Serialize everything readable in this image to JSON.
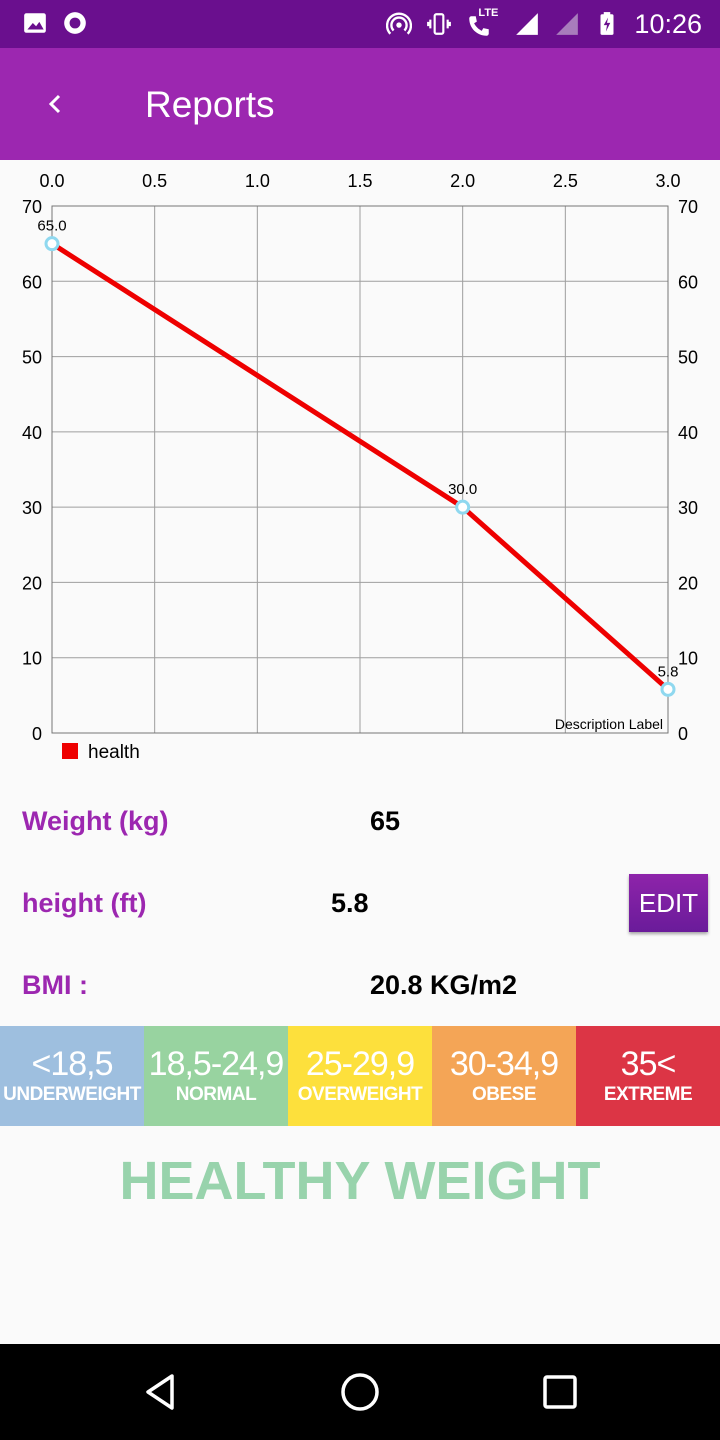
{
  "status_bar": {
    "time": "10:26",
    "network_label": "LTE",
    "icons": [
      "image-icon",
      "record-icon",
      "hotspot-icon",
      "vibrate-icon",
      "volte-call-icon",
      "signal-icon",
      "signal-lte-icon",
      "battery-charging-icon"
    ]
  },
  "app_bar": {
    "title": "Reports",
    "back_icon": "chevron-left-icon",
    "background": "#9c27b0"
  },
  "chart_data": {
    "type": "line",
    "x": [
      0,
      2,
      3
    ],
    "series": [
      {
        "name": "health",
        "values": [
          65.0,
          30.0,
          5.8
        ],
        "color": "#ee0000"
      }
    ],
    "value_labels": [
      "65.0",
      "30.0",
      "5.8"
    ],
    "xlim": [
      0,
      3
    ],
    "ylim": [
      0,
      70
    ],
    "x_ticks": [
      "0.0",
      "0.5",
      "1.0",
      "1.5",
      "2.0",
      "2.5",
      "3.0"
    ],
    "y_ticks": [
      "0",
      "10",
      "20",
      "30",
      "40",
      "50",
      "60",
      "70"
    ],
    "x_axis_position": "top",
    "y_axis_position": "both",
    "grid": true,
    "description": "Description Label",
    "legend_position": "bottom-left",
    "circle_color": "#8fd8ef"
  },
  "info": {
    "weight_label": "Weight (kg)",
    "weight_value": "65",
    "height_label": "height (ft)",
    "height_value": "5.8",
    "bmi_label": "BMI :",
    "bmi_value": "20.8 KG/m2",
    "edit_label": "EDIT"
  },
  "bmi_scale": [
    {
      "range": "<18,5",
      "name": "UNDERWEIGHT",
      "color": "#9ebfdf"
    },
    {
      "range": "18,5-24,9",
      "name": "NORMAL",
      "color": "#98d3a0"
    },
    {
      "range": "25-29,9",
      "name": "OVERWEIGHT",
      "color": "#fde03c"
    },
    {
      "range": "30-34,9",
      "name": "OBESE",
      "color": "#f4a556"
    },
    {
      "range": "35<",
      "name": "EXTREME",
      "color": "#dc3545"
    }
  ],
  "result": {
    "text": "HEALTHY WEIGHT",
    "color": "#98d3ac"
  },
  "nav_bar": {
    "icons": [
      "back-triangle-icon",
      "home-circle-icon",
      "recents-square-icon"
    ]
  }
}
